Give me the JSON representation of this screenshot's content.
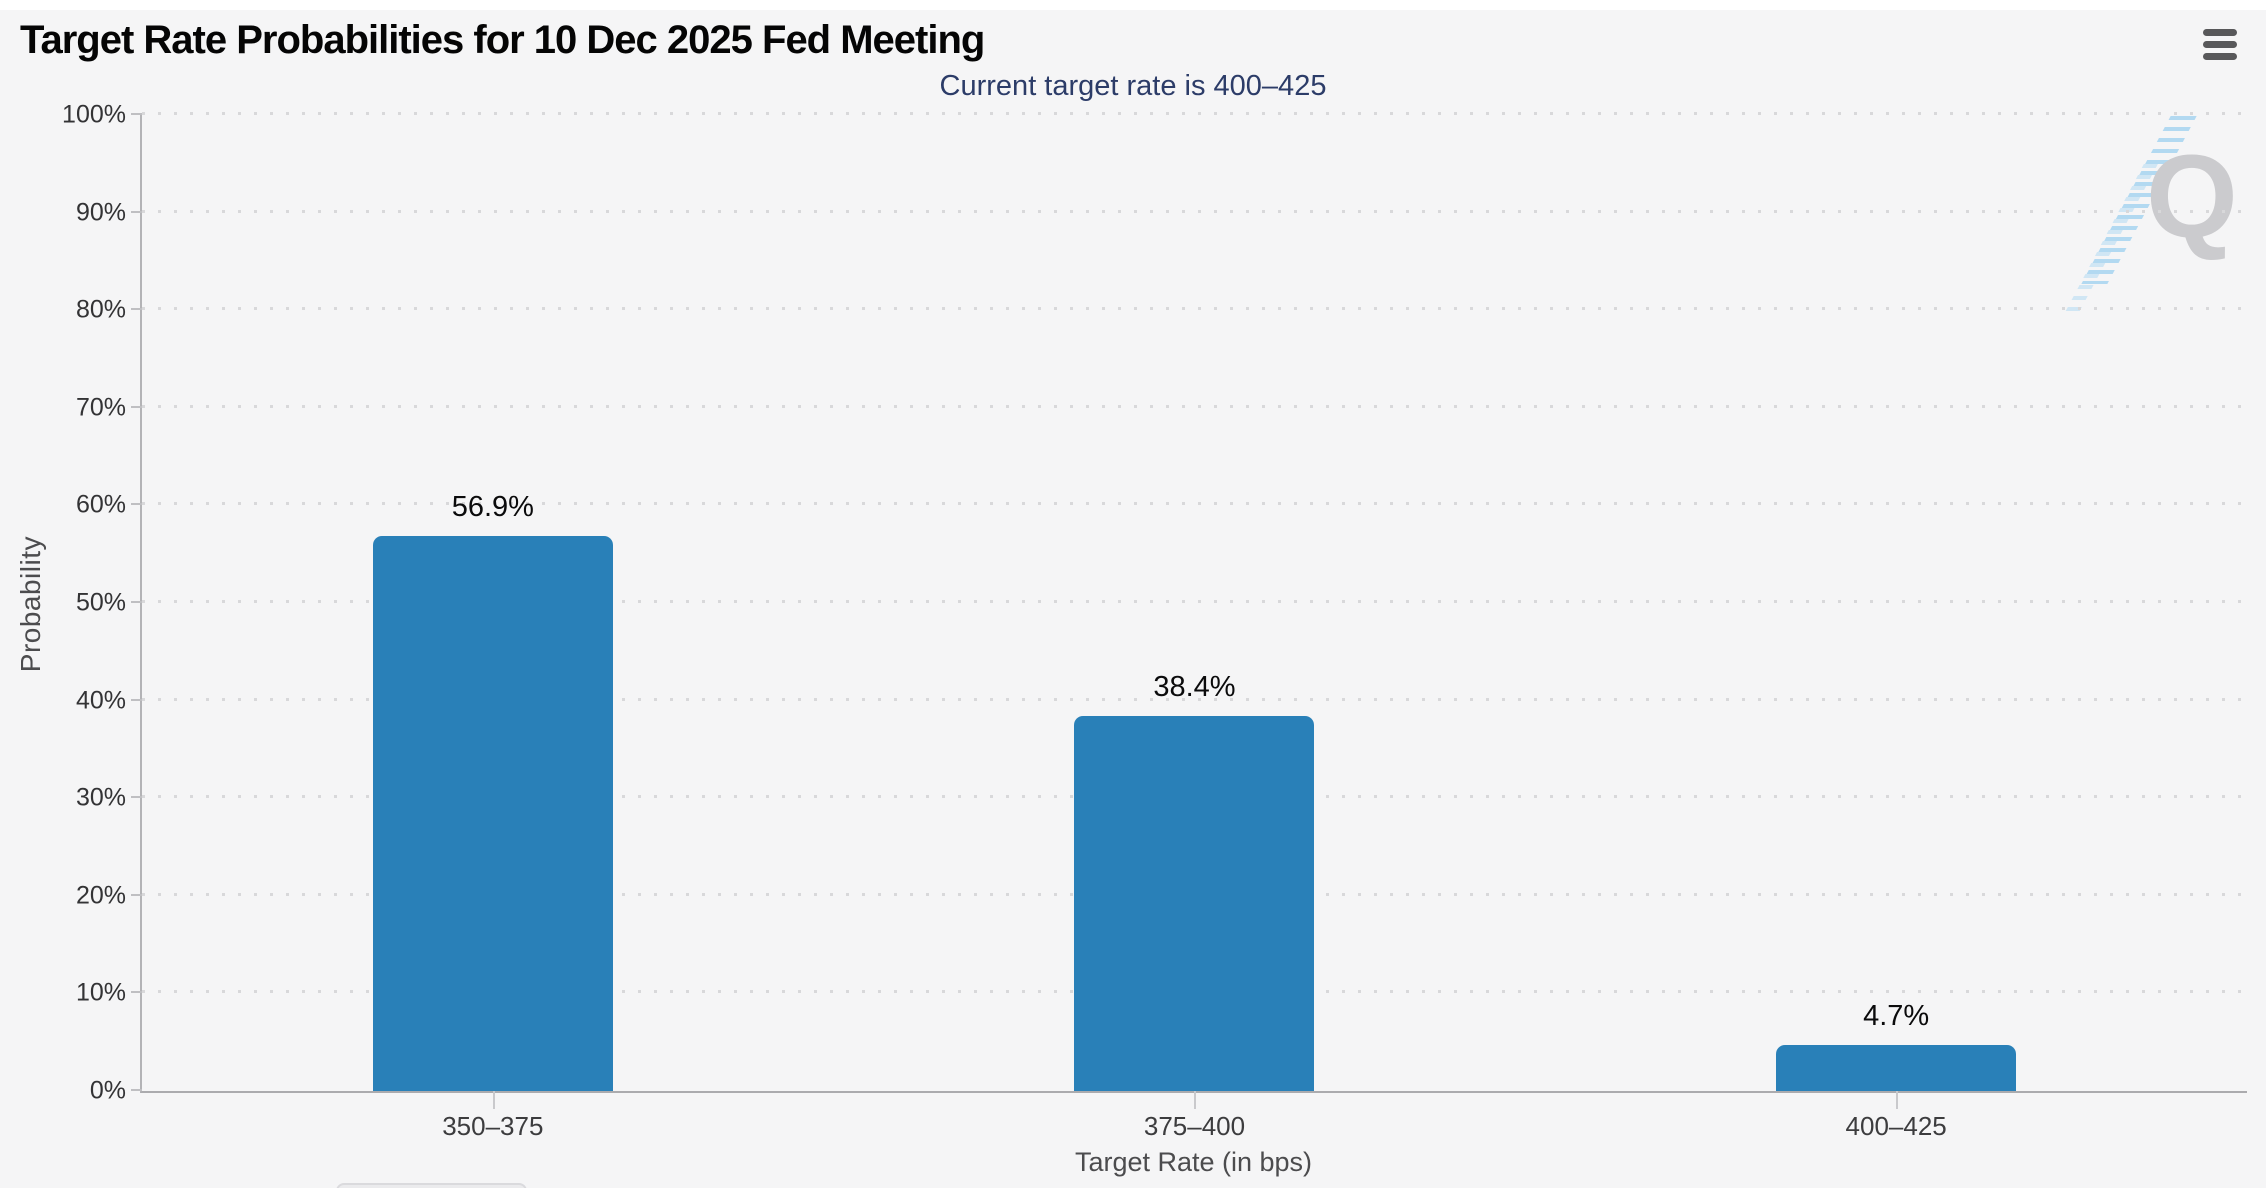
{
  "page": {
    "background": "#f5f5f6",
    "top_strip_color": "#ffffff"
  },
  "header": {
    "menu_icon": "hamburger-icon"
  },
  "chart_data": {
    "type": "bar",
    "title": "Target Rate Probabilities for 10 Dec 2025 Fed Meeting",
    "subtitle": "Current target rate is 400–425",
    "categories": [
      "350–375",
      "375–400",
      "400–425"
    ],
    "values": [
      56.9,
      38.4,
      4.7
    ],
    "value_labels": [
      "56.9%",
      "38.4%",
      "4.7%"
    ],
    "xlabel": "Target Rate (in bps)",
    "ylabel": "Probability",
    "ylim": [
      0,
      100
    ],
    "yticks": [
      "0%",
      "10%",
      "20%",
      "30%",
      "40%",
      "50%",
      "60%",
      "70%",
      "80%",
      "90%",
      "100%"
    ],
    "legend": "none",
    "grid": "horizontal-dotted",
    "bar_color": "#2980b8"
  },
  "watermark": {
    "letter": "Q",
    "icon": "quikstrike-logo"
  },
  "colors": {
    "subtitle_text": "#2c3c68",
    "axis_line": "#b3b3b6",
    "grid_dot": "#d8d8da",
    "tick_label": "#3c3c3e",
    "axis_title": "#4c4c4e",
    "value_label": "#0b0b0c",
    "menu_icon": "#58585a",
    "watermark_gray": "#c7c7ca",
    "watermark_blue": "#a9d6f0"
  }
}
